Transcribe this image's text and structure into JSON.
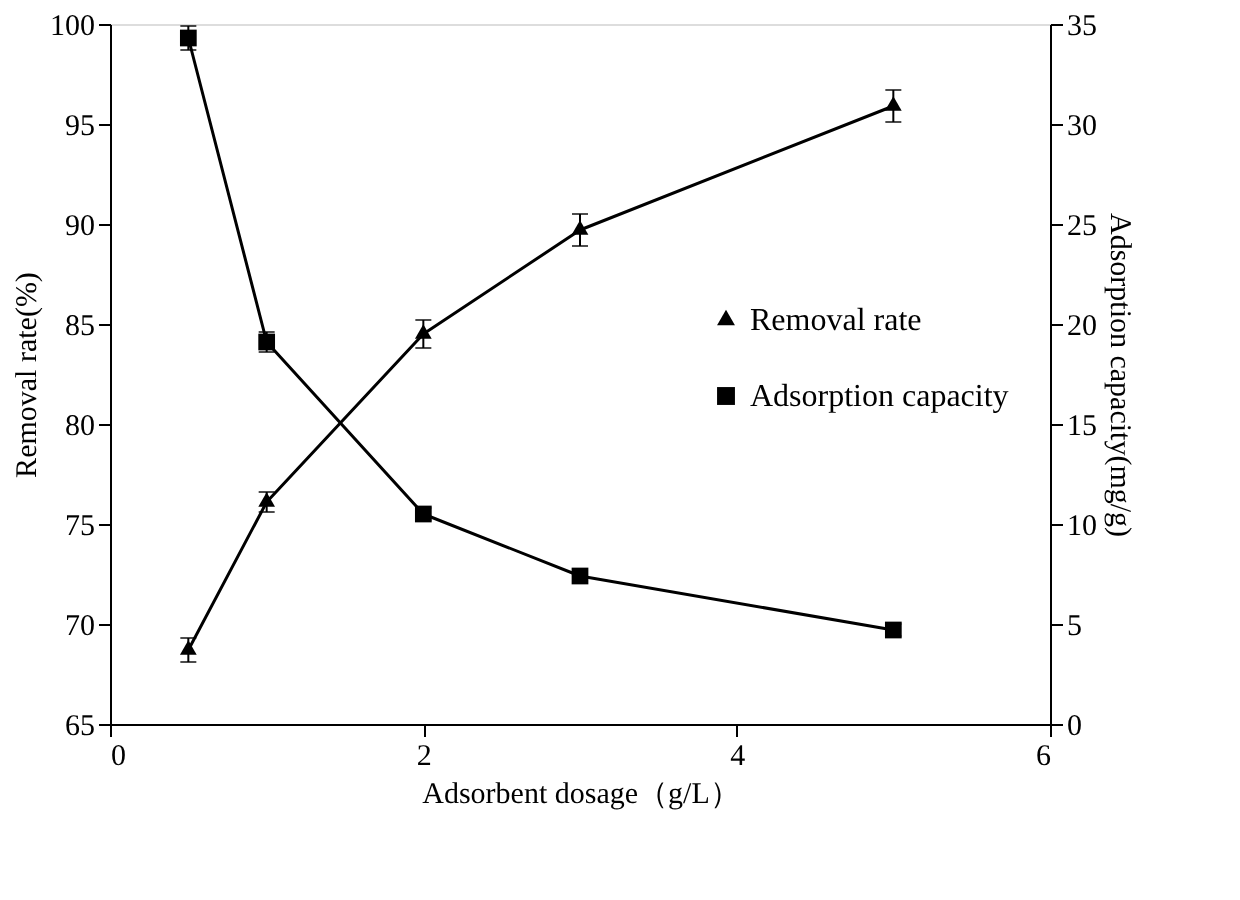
{
  "chart_data": {
    "type": "line",
    "xlabel": "Adsorbent dosage（g/L）",
    "ylabel": "Removal rate(%)",
    "y2label": "Adsorption capacity(mg/g)",
    "x": [
      0.5,
      1,
      2,
      3,
      5
    ],
    "series": [
      {
        "name": "Removal rate",
        "color": "#000000",
        "marker": "triangle",
        "values": [
          68.7,
          76.1,
          84.5,
          89.7,
          95.9
        ],
        "errors": [
          0.6,
          0.5,
          0.7,
          0.8,
          0.8
        ]
      },
      {
        "name": "Adsorption capacity",
        "color": "#000000",
        "marker": "square",
        "axis": "y2",
        "values": [
          34.3,
          19.1,
          10.5,
          7.4,
          4.7
        ],
        "errors": [
          0.6,
          0.5,
          0.3,
          0.3,
          0.3
        ]
      }
    ],
    "xlim": [
      0,
      6
    ],
    "xticks": [
      0,
      2,
      4,
      6
    ],
    "ylim": [
      65,
      100
    ],
    "yticks": [
      65,
      70,
      75,
      80,
      85,
      90,
      95,
      100
    ],
    "y2lim": [
      0,
      35
    ],
    "y2ticks": [
      0,
      5,
      10,
      15,
      20,
      25,
      30,
      35
    ],
    "grid": false,
    "legend": "right",
    "line_style": "solid"
  }
}
